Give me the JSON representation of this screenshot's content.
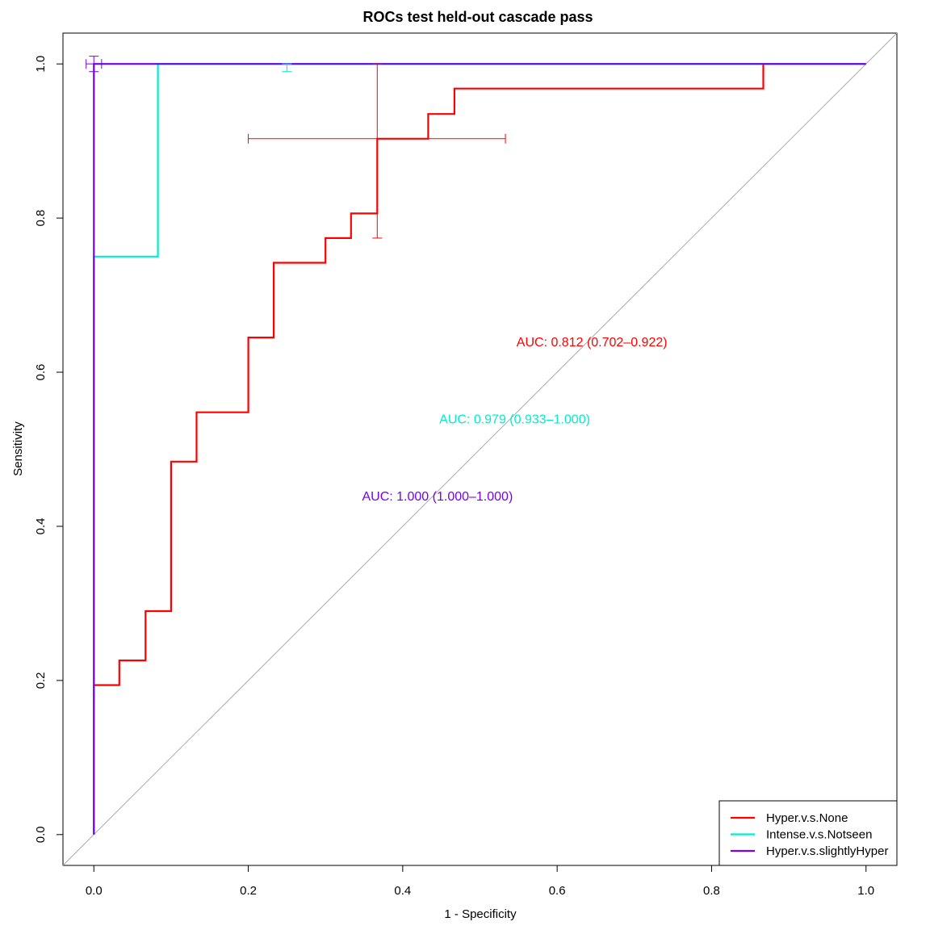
{
  "chart_data": {
    "type": "line",
    "title": "ROCs test held-out cascade pass",
    "xlabel": "1 - Specificity",
    "ylabel": "Sensitivity",
    "xlim": [
      -0.04,
      1.04
    ],
    "ylim": [
      -0.04,
      1.04
    ],
    "xticks": [
      0.0,
      0.2,
      0.4,
      0.6,
      0.8,
      1.0
    ],
    "yticks": [
      0.0,
      0.2,
      0.4,
      0.6,
      0.8,
      1.0
    ],
    "xtick_labels": [
      "0.0",
      "0.2",
      "0.4",
      "0.6",
      "0.8",
      "1.0"
    ],
    "ytick_labels": [
      "0.0",
      "0.2",
      "0.4",
      "0.6",
      "0.8",
      "1.0"
    ],
    "diagonal_reference": true,
    "legend_position": "bottom-right",
    "series": [
      {
        "name": "Hyper.v.s.None",
        "color": "#ff0000",
        "x": [
          0.0,
          0.0,
          0.033,
          0.033,
          0.067,
          0.067,
          0.1,
          0.1,
          0.133,
          0.133,
          0.2,
          0.2,
          0.233,
          0.233,
          0.3,
          0.3,
          0.333,
          0.333,
          0.367,
          0.367,
          0.433,
          0.433,
          0.467,
          0.467,
          0.867,
          0.867,
          1.0
        ],
        "y": [
          0.0,
          0.194,
          0.194,
          0.226,
          0.226,
          0.29,
          0.29,
          0.484,
          0.484,
          0.548,
          0.548,
          0.645,
          0.645,
          0.742,
          0.742,
          0.774,
          0.774,
          0.806,
          0.806,
          0.903,
          0.903,
          0.935,
          0.935,
          0.968,
          0.968,
          1.0,
          1.0
        ],
        "auc_label": "AUC: 0.812 (0.702–0.922)",
        "auc_label_anchor": [
          0.645,
          0.64
        ],
        "ci_cross": {
          "x": 0.367,
          "y": 0.903,
          "x_low": 0.2,
          "x_high": 0.533,
          "y_low": 0.774,
          "y_high": 1.0
        }
      },
      {
        "name": "Intense.v.s.Notseen",
        "color": "#00eecc",
        "x": [
          0.0,
          0.0,
          0.083,
          0.083,
          1.0
        ],
        "y": [
          0.0,
          0.75,
          0.75,
          1.0,
          1.0
        ],
        "auc_label": "AUC: 0.979 (0.933–1.000)",
        "auc_label_anchor": [
          0.545,
          0.54
        ],
        "ci_cross": {
          "x": 0.25,
          "y": 1.0,
          "x_low": 0.25,
          "x_high": 0.25,
          "y_low": 0.99,
          "y_high": 1.0
        }
      },
      {
        "name": "Hyper.v.s.slightlyHyper",
        "color": "#7700ee",
        "x": [
          0.0,
          0.0,
          1.0
        ],
        "y": [
          0.0,
          1.0,
          1.0
        ],
        "auc_label": "AUC: 1.000 (1.000–1.000)",
        "auc_label_anchor": [
          0.445,
          0.44
        ],
        "ci_cross": {
          "x": 0.0,
          "y": 1.0,
          "x_low": -0.01,
          "x_high": 0.01,
          "y_low": 0.99,
          "y_high": 1.01
        }
      }
    ]
  }
}
